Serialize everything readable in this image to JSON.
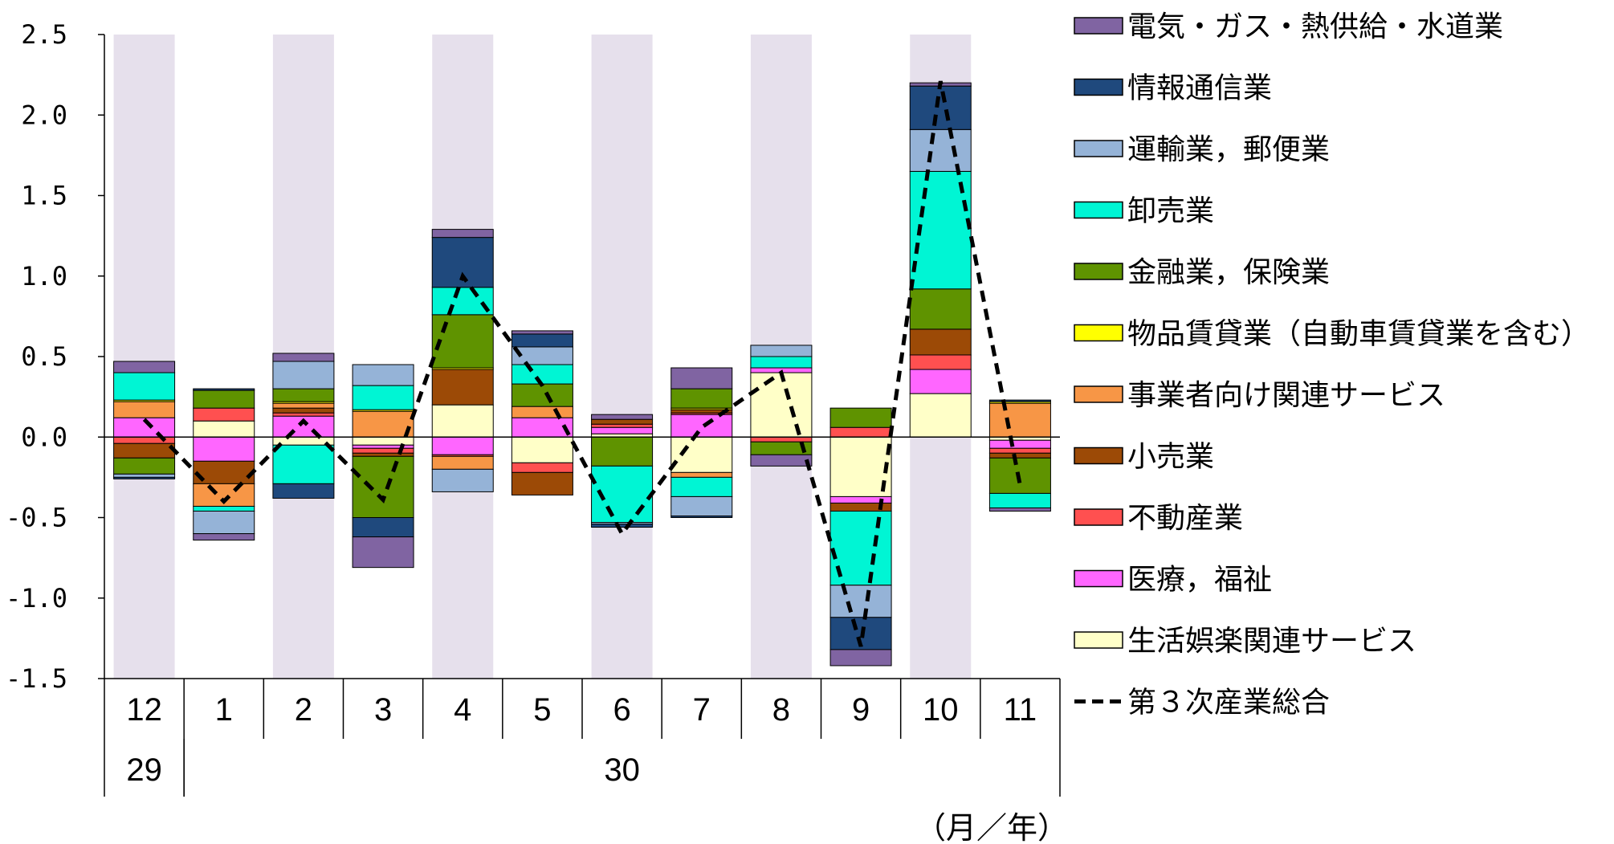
{
  "chart_data": {
    "type": "bar",
    "stacked": true,
    "categories": [
      "12",
      "1",
      "2",
      "3",
      "4",
      "5",
      "6",
      "7",
      "8",
      "9",
      "10",
      "11"
    ],
    "year_groups": [
      {
        "label": "29",
        "span": [
          0,
          0
        ]
      },
      {
        "label": "30",
        "span": [
          1,
          11
        ]
      }
    ],
    "shaded_categories": [
      0,
      2,
      4,
      6,
      8,
      10
    ],
    "ylim": [
      -1.5,
      2.5
    ],
    "yticks": [
      2.5,
      2.0,
      1.5,
      1.0,
      0.5,
      0.0,
      -0.5,
      -1.0,
      -1.5
    ],
    "ytick_labels": [
      "2.5",
      "2.0",
      "1.5",
      "1.0",
      "0.5",
      "0.0",
      "-0.5",
      "-1.0",
      "-1.5"
    ],
    "unit_label": "（月／年）",
    "stack_order": [
      "生活娯楽関連サービス",
      "医療，福祉",
      "不動産業",
      "小売業",
      "事業者向け関連サービス",
      "物品賃貸業（自動車賃貸業を含む）",
      "金融業，保険業",
      "卸売業",
      "運輸業，郵便業",
      "情報通信業",
      "電気・ガス・熱供給・水道業"
    ],
    "series": [
      {
        "name": "電気・ガス・熱供給・水道業",
        "color": "#8064A2",
        "values": [
          0.07,
          -0.04,
          0.05,
          -0.19,
          0.05,
          0.02,
          0.03,
          0.13,
          -0.07,
          -0.1,
          0.02,
          -0.02
        ]
      },
      {
        "name": "情報通信業",
        "color": "#1F497D",
        "values": [
          -0.01,
          0.01,
          -0.09,
          -0.12,
          0.31,
          0.08,
          -0.02,
          -0.01,
          0.0,
          -0.2,
          0.27,
          0.01
        ]
      },
      {
        "name": "運輸業，郵便業",
        "color": "#95B3D7",
        "values": [
          -0.02,
          -0.14,
          0.17,
          0.13,
          -0.14,
          0.11,
          -0.01,
          -0.12,
          0.07,
          -0.2,
          0.26,
          0.0
        ]
      },
      {
        "name": "卸売業",
        "color": "#00F5D4",
        "values": [
          0.17,
          -0.03,
          -0.24,
          0.15,
          0.17,
          0.12,
          -0.35,
          -0.12,
          0.07,
          -0.46,
          0.73,
          -0.09
        ]
      },
      {
        "name": "金融業，保険業",
        "color": "#5F9300",
        "values": [
          -0.1,
          0.11,
          0.08,
          -0.38,
          0.33,
          0.14,
          -0.18,
          0.12,
          -0.08,
          0.12,
          0.25,
          -0.22
        ]
      },
      {
        "name": "物品賃貸業（自動車賃貸業を含む）",
        "color": "#FFFF00",
        "values": [
          0.01,
          0.0,
          0.01,
          0.01,
          0.01,
          0.0,
          0.0,
          0.01,
          0.0,
          0.0,
          0.0,
          0.01
        ]
      },
      {
        "name": "事業者向け関連サービス",
        "color": "#F79646",
        "values": [
          0.1,
          -0.14,
          0.03,
          0.16,
          -0.08,
          0.07,
          0.0,
          -0.03,
          0.0,
          0.0,
          0.0,
          0.21
        ]
      },
      {
        "name": "小売業",
        "color": "#9C4A06",
        "values": [
          -0.09,
          -0.14,
          0.03,
          -0.02,
          0.22,
          -0.14,
          0.03,
          0.02,
          0.0,
          -0.05,
          0.16,
          -0.03
        ]
      },
      {
        "name": "不動産業",
        "color": "#FF5050",
        "values": [
          -0.04,
          0.08,
          0.02,
          -0.03,
          -0.01,
          -0.06,
          0.02,
          0.01,
          -0.03,
          0.06,
          0.09,
          -0.03
        ]
      },
      {
        "name": "医療，福祉",
        "color": "#FF66FF",
        "values": [
          0.12,
          -0.15,
          0.13,
          -0.02,
          -0.11,
          0.12,
          0.04,
          0.14,
          0.03,
          -0.04,
          0.15,
          -0.05
        ]
      },
      {
        "name": "生活娯楽関連サービス",
        "color": "#FFFFC8",
        "values": [
          0.0,
          0.1,
          -0.05,
          -0.05,
          0.2,
          -0.16,
          0.02,
          -0.22,
          0.4,
          -0.37,
          0.27,
          -0.02
        ]
      }
    ],
    "line": {
      "name": "第３次産業総合",
      "style": "dashed",
      "color": "#000000",
      "values": [
        0.11,
        -0.4,
        0.1,
        -0.39,
        1.0,
        0.32,
        -0.6,
        0.06,
        0.4,
        -1.3,
        2.21,
        -0.3
      ]
    }
  }
}
